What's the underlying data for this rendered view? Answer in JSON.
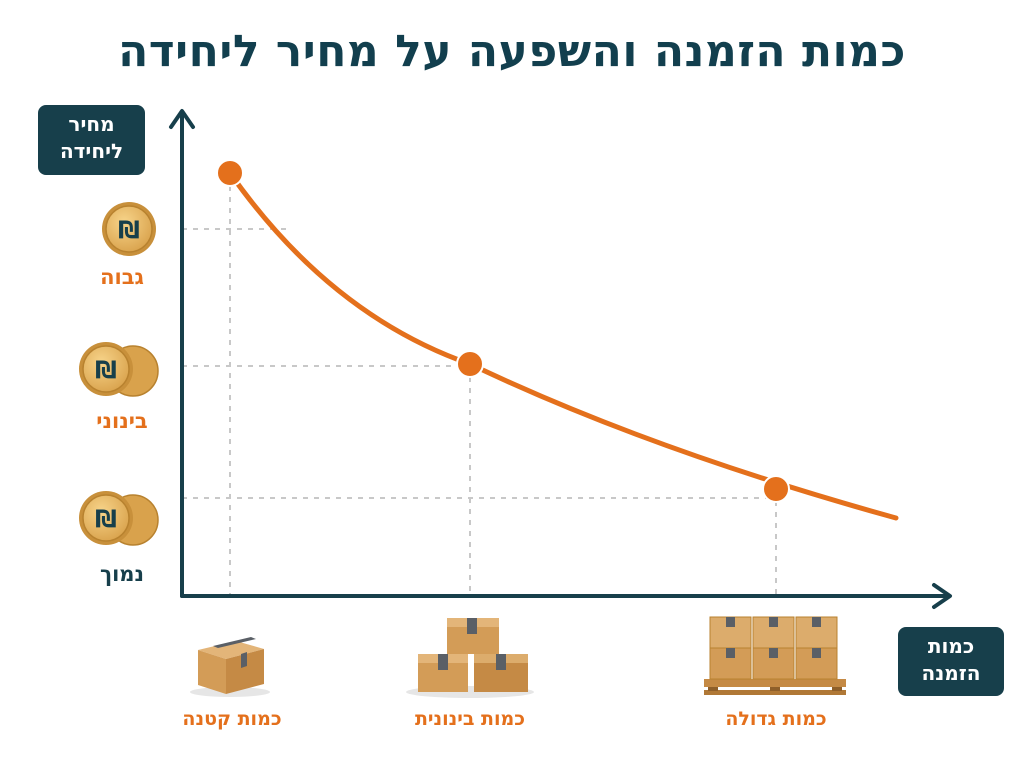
{
  "title": "כמות הזמנה והשפעה על מחיר ליחידה",
  "y_axis": {
    "label_line1": "מחיר",
    "label_line2": "ליחידה"
  },
  "x_axis": {
    "label_line1": "כמות",
    "label_line2": "הזמנה"
  },
  "price_levels": [
    {
      "label": "גבוה",
      "color": "#e4701c",
      "icon": "single-shekel-coin-icon"
    },
    {
      "label": "בינוני",
      "color": "#e4701c",
      "icon": "double-shekel-coin-icon"
    },
    {
      "label": "נמוך",
      "color": "#173f4b",
      "icon": "double-shekel-coin-icon"
    }
  ],
  "quantity_levels": [
    {
      "label": "כמות קטנה",
      "icon": "single-box-icon"
    },
    {
      "label": "כמות בינונית",
      "icon": "box-stack-icon"
    },
    {
      "label": "כמות גדולה",
      "icon": "pallet-boxes-icon"
    }
  ],
  "coin_symbol": "₪",
  "colors": {
    "curve": "#e4701c",
    "axis": "#173f4b",
    "grid": "#c8c8c8"
  }
}
